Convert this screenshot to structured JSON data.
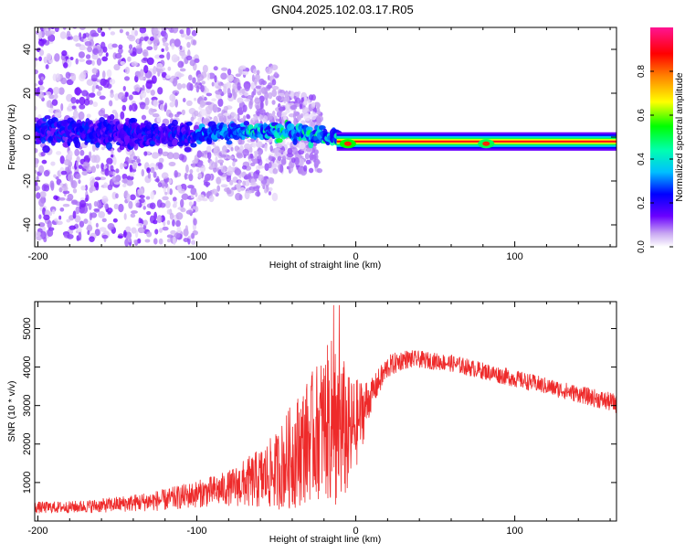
{
  "title": "GN04.2025.102.03.17.R05",
  "colors": {
    "snr_line": "#ee2a2a",
    "background": "#ffffff"
  },
  "chart_data": [
    {
      "type": "heatmap",
      "xlabel": "Height of straight line (km)",
      "ylabel": "Frequency (Hz)",
      "xlim": [
        -202,
        164
      ],
      "ylim": [
        -50,
        50
      ],
      "xticks": [
        -200,
        -100,
        0,
        100
      ],
      "xtick_labels": [
        "-200",
        "-100",
        "0",
        "100"
      ],
      "yticks": [
        -40,
        -20,
        0,
        20,
        40
      ],
      "ytick_labels": [
        "-40",
        "-20",
        "0",
        "20",
        "40"
      ],
      "colorbar": {
        "label": "Normalized spectral amplitude",
        "range": [
          0,
          1
        ],
        "ticks": [
          0.0,
          0.2,
          0.4,
          0.6,
          0.8
        ],
        "tick_labels": [
          "0.0",
          "0.2",
          "0.4",
          "0.6",
          "0.8"
        ],
        "colormap": "rainbow (white-violet to magenta)"
      },
      "trace": {
        "description_points": [
          {
            "x": -200,
            "freq": 3
          },
          {
            "x": -150,
            "freq": 2
          },
          {
            "x": -100,
            "freq": 1
          },
          {
            "x": -60,
            "freq": 3
          },
          {
            "x": -30,
            "freq": 2
          },
          {
            "x": -15,
            "freq": 0
          },
          {
            "x": 0,
            "freq": -1
          },
          {
            "x": 50,
            "freq": -2
          },
          {
            "x": 100,
            "freq": -2
          },
          {
            "x": 164,
            "freq": -2
          }
        ]
      },
      "grid": false
    },
    {
      "type": "line",
      "xlabel": "Height of straight line (km)",
      "ylabel": "SNR (10 * v/v)",
      "xlim": [
        -202,
        164
      ],
      "ylim": [
        0,
        5700
      ],
      "xticks": [
        -200,
        -100,
        0,
        100
      ],
      "xtick_labels": [
        "-200",
        "-100",
        "0",
        "100"
      ],
      "yticks": [
        1000,
        2000,
        3000,
        4000,
        5000
      ],
      "ytick_labels": [
        "1000",
        "2000",
        "3000",
        "4000",
        "5000"
      ],
      "series": [
        {
          "envelope_x": [
            -202,
            -180,
            -160,
            -140,
            -120,
            -100,
            -80,
            -60,
            -50,
            -40,
            -30,
            -20,
            -12,
            -5,
            0,
            10,
            20,
            30,
            40,
            60,
            80,
            100,
            120,
            140,
            164
          ],
          "envelope_mean": [
            350,
            360,
            400,
            470,
            550,
            700,
            850,
            1100,
            1300,
            1700,
            2100,
            2500,
            2600,
            2200,
            2500,
            3300,
            4000,
            4200,
            4200,
            4100,
            3900,
            3700,
            3500,
            3300,
            3050
          ],
          "envelope_amp": [
            150,
            150,
            180,
            220,
            280,
            350,
            450,
            800,
            1000,
            1400,
            1600,
            1900,
            2400,
            1600,
            1200,
            400,
            300,
            250,
            220,
            220,
            220,
            220,
            220,
            220,
            250
          ]
        }
      ],
      "grid": false
    }
  ]
}
